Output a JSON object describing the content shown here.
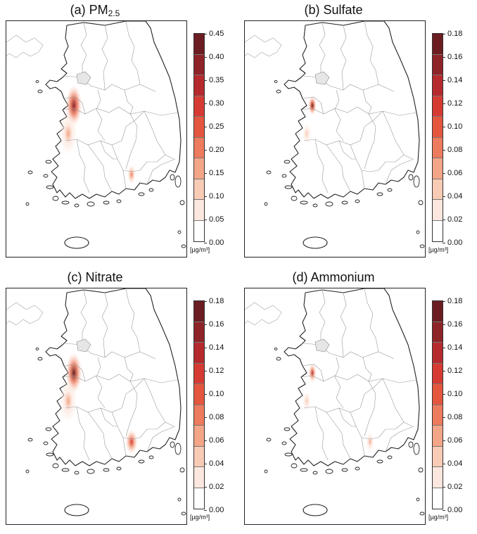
{
  "panels": [
    {
      "title_prefix": "(a) PM",
      "title_sub": "2.5",
      "colorbar_ticks": [
        "0.45",
        "0.40",
        "0.35",
        "0.30",
        "0.25",
        "0.20",
        "0.15",
        "0.10",
        "0.05",
        "0.00"
      ],
      "unit": "[µg/m³]",
      "hotspots": [
        {
          "site": "west-coast-north",
          "level": 0.42,
          "spread": "large"
        },
        {
          "site": "west-coast-south",
          "level": 0.15,
          "spread": "large"
        },
        {
          "site": "south-coast",
          "level": 0.18,
          "spread": "small"
        }
      ]
    },
    {
      "title_prefix": "(b) Sulfate",
      "title_sub": "",
      "colorbar_ticks": [
        "0.18",
        "0.16",
        "0.14",
        "0.12",
        "0.10",
        "0.08",
        "0.06",
        "0.04",
        "0.02",
        "0.00"
      ],
      "unit": "[µg/m³]",
      "hotspots": [
        {
          "site": "west-coast-north",
          "level": 0.17,
          "spread": "small"
        },
        {
          "site": "west-coast-south",
          "level": 0.04,
          "spread": "small"
        }
      ]
    },
    {
      "title_prefix": "(c) Nitrate",
      "title_sub": "",
      "colorbar_ticks": [
        "0.18",
        "0.16",
        "0.14",
        "0.12",
        "0.10",
        "0.08",
        "0.06",
        "0.04",
        "0.02",
        "0.00"
      ],
      "unit": "[µg/m³]",
      "hotspots": [
        {
          "site": "west-coast-north",
          "level": 0.17,
          "spread": "large"
        },
        {
          "site": "west-coast-south",
          "level": 0.06,
          "spread": "large"
        },
        {
          "site": "south-coast",
          "level": 0.12,
          "spread": "medium"
        }
      ]
    },
    {
      "title_prefix": "(d) Ammonium",
      "title_sub": "",
      "colorbar_ticks": [
        "0.18",
        "0.16",
        "0.14",
        "0.12",
        "0.10",
        "0.08",
        "0.06",
        "0.04",
        "0.02",
        "0.00"
      ],
      "unit": "[µg/m³]",
      "hotspots": [
        {
          "site": "west-coast-north",
          "level": 0.14,
          "spread": "small"
        },
        {
          "site": "west-coast-south",
          "level": 0.04,
          "spread": "small"
        },
        {
          "site": "south-coast",
          "level": 0.06,
          "spread": "small"
        }
      ]
    }
  ],
  "colorbar_colors": [
    "#6b1d22",
    "#8e2328",
    "#b62a2e",
    "#d63b33",
    "#e4573e",
    "#ed7b5d",
    "#f3a587",
    "#f8cbb5",
    "#fce7de",
    "#ffffff"
  ]
}
